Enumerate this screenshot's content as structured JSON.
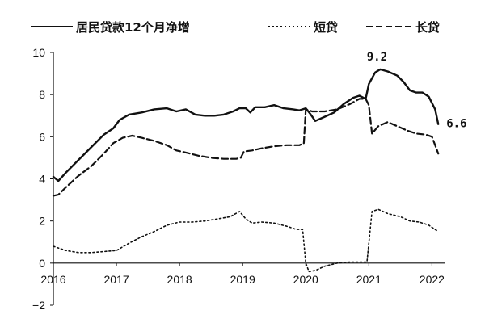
{
  "chart_data": {
    "type": "line",
    "title": "",
    "xlabel": "",
    "ylabel": "",
    "ylim": [
      -2,
      10
    ],
    "xlim": [
      2016,
      2022.2
    ],
    "y_ticks": [
      10,
      8,
      6,
      4,
      2,
      0,
      -2
    ],
    "y_tick_labels": [
      "10",
      "8",
      "6",
      "4",
      "2",
      "0",
      "−2"
    ],
    "negative_tick_color": "#d62728",
    "x_ticks": [
      2016,
      2017,
      2018,
      2019,
      2020,
      2021,
      2022
    ],
    "x_tick_labels": [
      "2016",
      "2017",
      "2018",
      "2019",
      "2020",
      "2021",
      "2022"
    ],
    "legend": {
      "position": "top",
      "labels": [
        "居民贷款12个月净增",
        "短贷",
        "长贷"
      ]
    },
    "series": [
      {
        "name": "居民贷款12个月净增",
        "style": "solid",
        "color": "#111111",
        "points": [
          [
            2016.0,
            4.1
          ],
          [
            2016.08,
            3.9
          ],
          [
            2016.2,
            4.3
          ],
          [
            2016.4,
            4.9
          ],
          [
            2016.6,
            5.5
          ],
          [
            2016.8,
            6.1
          ],
          [
            2016.95,
            6.4
          ],
          [
            2017.05,
            6.8
          ],
          [
            2017.2,
            7.05
          ],
          [
            2017.4,
            7.15
          ],
          [
            2017.6,
            7.3
          ],
          [
            2017.8,
            7.35
          ],
          [
            2017.95,
            7.2
          ],
          [
            2018.1,
            7.3
          ],
          [
            2018.25,
            7.05
          ],
          [
            2018.4,
            7.0
          ],
          [
            2018.55,
            7.0
          ],
          [
            2018.7,
            7.05
          ],
          [
            2018.85,
            7.2
          ],
          [
            2018.95,
            7.35
          ],
          [
            2019.05,
            7.35
          ],
          [
            2019.12,
            7.15
          ],
          [
            2019.2,
            7.4
          ],
          [
            2019.35,
            7.4
          ],
          [
            2019.5,
            7.5
          ],
          [
            2019.65,
            7.35
          ],
          [
            2019.8,
            7.3
          ],
          [
            2019.9,
            7.25
          ],
          [
            2019.95,
            7.3
          ],
          [
            2020.0,
            7.35
          ],
          [
            2020.08,
            7.05
          ],
          [
            2020.15,
            6.75
          ],
          [
            2020.3,
            6.95
          ],
          [
            2020.45,
            7.15
          ],
          [
            2020.6,
            7.55
          ],
          [
            2020.75,
            7.85
          ],
          [
            2020.85,
            7.95
          ],
          [
            2020.95,
            7.8
          ],
          [
            2021.0,
            8.5
          ],
          [
            2021.1,
            9.05
          ],
          [
            2021.18,
            9.2
          ],
          [
            2021.3,
            9.1
          ],
          [
            2021.45,
            8.9
          ],
          [
            2021.55,
            8.6
          ],
          [
            2021.65,
            8.2
          ],
          [
            2021.75,
            8.1
          ],
          [
            2021.85,
            8.1
          ],
          [
            2021.95,
            7.9
          ],
          [
            2022.05,
            7.3
          ],
          [
            2022.1,
            6.6
          ]
        ]
      },
      {
        "name": "短贷",
        "style": "dotted",
        "color": "#111111",
        "points": [
          [
            2016.0,
            0.8
          ],
          [
            2016.2,
            0.6
          ],
          [
            2016.4,
            0.5
          ],
          [
            2016.6,
            0.5
          ],
          [
            2016.8,
            0.55
          ],
          [
            2017.0,
            0.6
          ],
          [
            2017.2,
            0.95
          ],
          [
            2017.4,
            1.25
          ],
          [
            2017.6,
            1.5
          ],
          [
            2017.8,
            1.8
          ],
          [
            2018.0,
            1.95
          ],
          [
            2018.2,
            1.95
          ],
          [
            2018.4,
            2.0
          ],
          [
            2018.6,
            2.1
          ],
          [
            2018.8,
            2.2
          ],
          [
            2018.95,
            2.45
          ],
          [
            2019.05,
            2.1
          ],
          [
            2019.15,
            1.9
          ],
          [
            2019.3,
            1.95
          ],
          [
            2019.5,
            1.9
          ],
          [
            2019.7,
            1.75
          ],
          [
            2019.85,
            1.6
          ],
          [
            2019.95,
            1.6
          ],
          [
            2020.0,
            0.0
          ],
          [
            2020.05,
            -0.4
          ],
          [
            2020.15,
            -0.35
          ],
          [
            2020.3,
            -0.15
          ],
          [
            2020.5,
            0.0
          ],
          [
            2020.7,
            0.05
          ],
          [
            2020.9,
            0.05
          ],
          [
            2020.97,
            0.05
          ],
          [
            2021.05,
            2.45
          ],
          [
            2021.15,
            2.55
          ],
          [
            2021.3,
            2.35
          ],
          [
            2021.5,
            2.2
          ],
          [
            2021.65,
            2.0
          ],
          [
            2021.8,
            1.95
          ],
          [
            2021.95,
            1.8
          ],
          [
            2022.1,
            1.5
          ]
        ]
      },
      {
        "name": "长贷",
        "style": "dashed",
        "color": "#111111",
        "points": [
          [
            2016.0,
            3.2
          ],
          [
            2016.08,
            3.25
          ],
          [
            2016.2,
            3.6
          ],
          [
            2016.4,
            4.15
          ],
          [
            2016.6,
            4.6
          ],
          [
            2016.8,
            5.2
          ],
          [
            2016.95,
            5.7
          ],
          [
            2017.1,
            5.95
          ],
          [
            2017.25,
            6.05
          ],
          [
            2017.4,
            5.95
          ],
          [
            2017.6,
            5.8
          ],
          [
            2017.8,
            5.6
          ],
          [
            2017.95,
            5.35
          ],
          [
            2018.1,
            5.25
          ],
          [
            2018.3,
            5.1
          ],
          [
            2018.5,
            5.0
          ],
          [
            2018.7,
            4.95
          ],
          [
            2018.9,
            4.95
          ],
          [
            2018.97,
            5.0
          ],
          [
            2019.02,
            5.3
          ],
          [
            2019.15,
            5.35
          ],
          [
            2019.3,
            5.45
          ],
          [
            2019.5,
            5.55
          ],
          [
            2019.7,
            5.6
          ],
          [
            2019.9,
            5.6
          ],
          [
            2019.97,
            5.7
          ],
          [
            2020.0,
            7.3
          ],
          [
            2020.1,
            7.2
          ],
          [
            2020.3,
            7.2
          ],
          [
            2020.5,
            7.3
          ],
          [
            2020.7,
            7.55
          ],
          [
            2020.85,
            7.8
          ],
          [
            2020.95,
            7.8
          ],
          [
            2021.0,
            7.5
          ],
          [
            2021.05,
            6.15
          ],
          [
            2021.15,
            6.5
          ],
          [
            2021.3,
            6.7
          ],
          [
            2021.45,
            6.5
          ],
          [
            2021.6,
            6.3
          ],
          [
            2021.75,
            6.15
          ],
          [
            2021.9,
            6.1
          ],
          [
            2022.0,
            6.0
          ],
          [
            2022.1,
            5.2
          ]
        ]
      }
    ],
    "annotations": [
      {
        "label": "9.2",
        "x": 2021.18,
        "y": 9.2
      },
      {
        "label": "6.6",
        "x": 2022.1,
        "y": 6.6
      }
    ]
  }
}
